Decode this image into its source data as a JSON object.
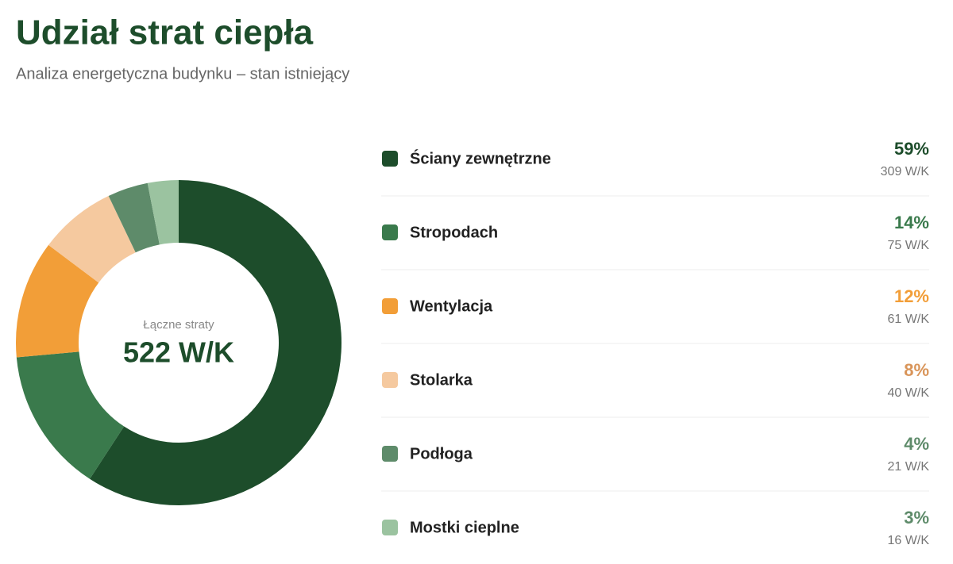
{
  "chart_data": {
    "type": "donut",
    "title": "Udział strat ciepła",
    "subtitle": "Analiza energetyczna budynku – stan istniejący",
    "center_label": "Łączne straty",
    "center_value": "522 W/K",
    "categories": [
      "Ściany zewnętrzne",
      "Stropodach",
      "Wentylacja",
      "Stolarka",
      "Podłoga",
      "Mostki cieplne"
    ],
    "values": [
      309,
      75,
      61,
      40,
      21,
      16
    ],
    "value_labels": [
      "309 W/K",
      "75 W/K",
      "61 W/K",
      "40 W/K",
      "21 W/K",
      "16 W/K"
    ],
    "percents": [
      59,
      14,
      12,
      8,
      4,
      3
    ],
    "percent_labels": [
      "59%",
      "14%",
      "12%",
      "8%",
      "4%",
      "3%"
    ],
    "colors": [
      "#1d4d2b",
      "#3a7a4c",
      "#f29e38",
      "#f5c99f",
      "#5e8b6a",
      "#9bc3a0"
    ],
    "label_colors": [
      "#1d4d2b",
      "#3a7a4c",
      "#f29e38",
      "#d9955a",
      "#5e8b6a",
      "#5e8b6a"
    ]
  }
}
